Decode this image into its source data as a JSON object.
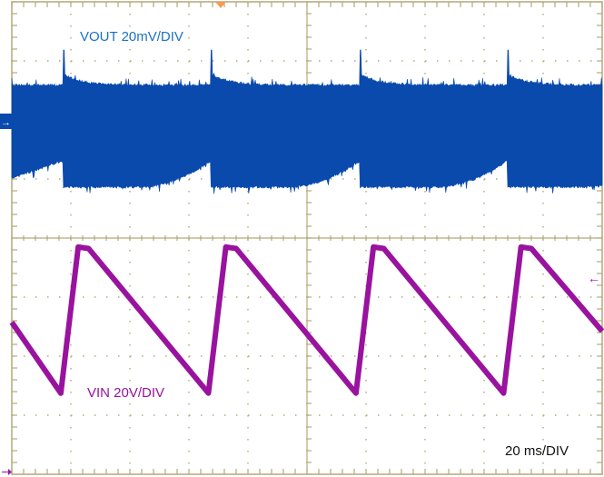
{
  "colors": {
    "grid": "#b3a97a",
    "vout": "#0a4aad",
    "vout_label": "#1b72c4",
    "vin": "#99139e",
    "trigger": "#f59a55",
    "text": "#111111"
  },
  "chart_data": {
    "type": "line",
    "title": "",
    "grid": true,
    "divisions": {
      "horizontal": 10,
      "vertical": 8
    },
    "time_per_div_label": "20 ms/DIV",
    "x_units": "ms",
    "xlim": [
      0,
      200
    ],
    "series": [
      {
        "name": "VOUT 20mV/DIV",
        "units": "mV",
        "volts_per_div": 20,
        "style": "noisy band",
        "ripple_envelope": {
          "spike_times_ms": [
            17.5,
            67.5,
            118,
            168
          ],
          "upper_baseline": 11.7,
          "upper_after_spike": 15.5,
          "spike_peak": 24,
          "lower_after_spike": -22,
          "lower_before_spike": -13
        }
      },
      {
        "name": "VIN 20V/DIV",
        "units": "V",
        "volts_per_div": 20,
        "points": [
          [
            0,
            -15
          ],
          [
            16.6,
            -39
          ],
          [
            22.5,
            10.5
          ],
          [
            26,
            10
          ],
          [
            66.6,
            -39
          ],
          [
            72.5,
            10.5
          ],
          [
            76,
            10
          ],
          [
            116.6,
            -39
          ],
          [
            122.5,
            10.5
          ],
          [
            126,
            10
          ],
          [
            166.6,
            -39
          ],
          [
            172.5,
            10.5
          ],
          [
            176,
            10
          ],
          [
            200,
            -18
          ]
        ]
      }
    ]
  },
  "labels": {
    "vout": "VOUT 20mV/DIV",
    "vin": "VIN 20V/DIV",
    "timebase": "20 ms/DIV",
    "vout_marker": "→",
    "vin_marker": "←"
  }
}
